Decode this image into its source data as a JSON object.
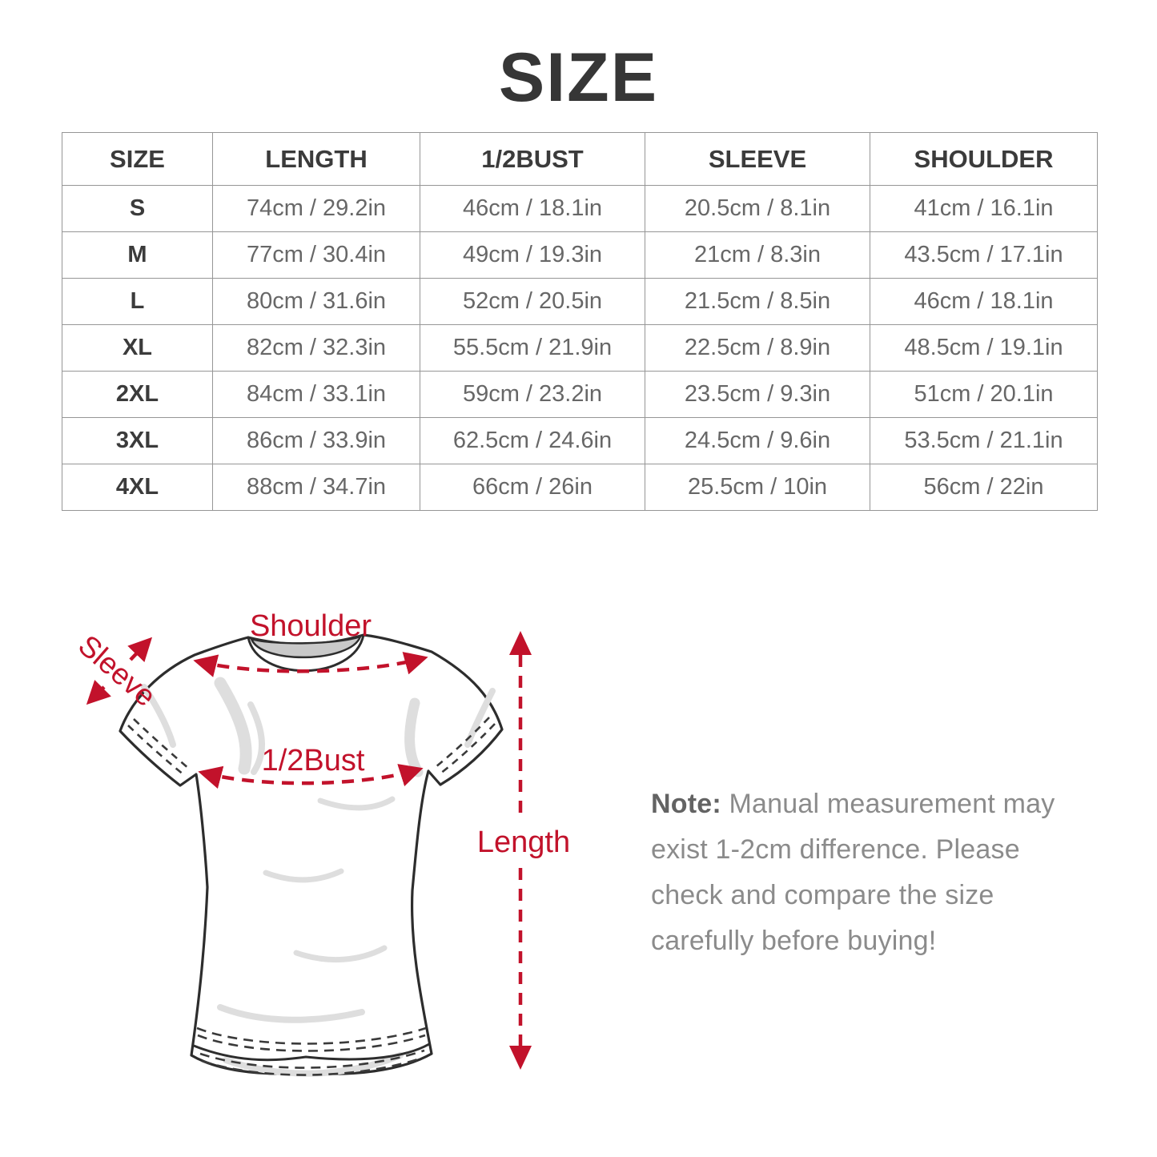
{
  "page": {
    "title": "SIZE"
  },
  "size_table": {
    "headers": [
      "SIZE",
      "LENGTH",
      "1/2BUST",
      "SLEEVE",
      "SHOULDER"
    ],
    "rows": [
      [
        "S",
        "74cm / 29.2in",
        "46cm / 18.1in",
        "20.5cm / 8.1in",
        "41cm / 16.1in"
      ],
      [
        "M",
        "77cm / 30.4in",
        "49cm / 19.3in",
        "21cm / 8.3in",
        "43.5cm / 17.1in"
      ],
      [
        "L",
        "80cm / 31.6in",
        "52cm / 20.5in",
        "21.5cm / 8.5in",
        "46cm / 18.1in"
      ],
      [
        "XL",
        "82cm / 32.3in",
        "55.5cm / 21.9in",
        "22.5cm / 8.9in",
        "48.5cm / 19.1in"
      ],
      [
        "2XL",
        "84cm / 33.1in",
        "59cm / 23.2in",
        "23.5cm / 9.3in",
        "51cm / 20.1in"
      ],
      [
        "3XL",
        "86cm / 33.9in",
        "62.5cm / 24.6in",
        "24.5cm / 9.6in",
        "53.5cm / 21.1in"
      ],
      [
        "4XL",
        "88cm / 34.7in",
        "66cm / 26in",
        "25.5cm / 10in",
        "56cm / 22in"
      ]
    ]
  },
  "diagram": {
    "labels": {
      "shoulder": "Shoulder",
      "sleeve": "Sleeve",
      "half_bust": "1/2Bust",
      "length": "Length"
    },
    "accent_color": "#c2122b"
  },
  "note": {
    "prefix": "Note:",
    "text": " Manual measurement may exist 1-2cm difference. Please check and compare the size carefully before buying!"
  }
}
